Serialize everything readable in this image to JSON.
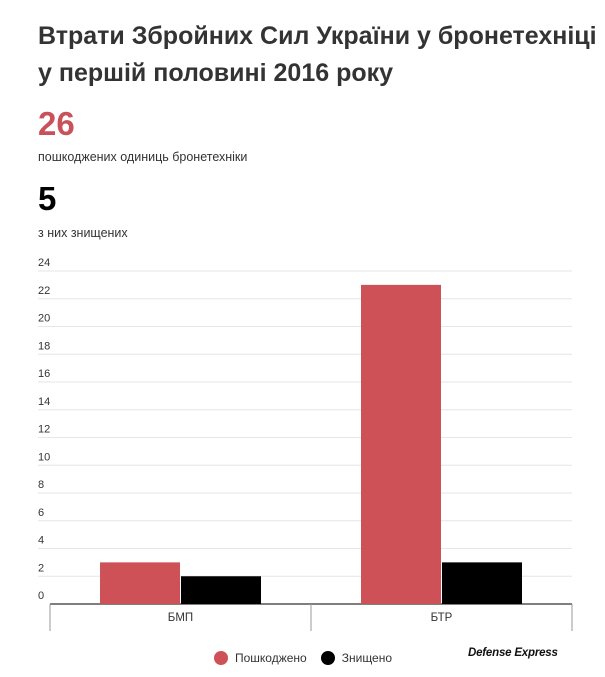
{
  "header": {
    "title": "Втрати Збройних Сил України у бронетехніці у першій половині  2016 року"
  },
  "stats": {
    "damaged_value": "26",
    "damaged_label": "пошкоджених одиниць бронетехніки",
    "destroyed_value": "5",
    "destroyed_label": "з них знищених"
  },
  "colors": {
    "damaged": "#cf5158",
    "destroyed": "#000000",
    "accent_text": "#c8515a"
  },
  "watermark": "Defense Express",
  "chart_data": {
    "type": "bar",
    "categories": [
      "БМП",
      "БТР"
    ],
    "series": [
      {
        "name": "Пошкоджено",
        "values": [
          3,
          23
        ]
      },
      {
        "name": "Знищено",
        "values": [
          2,
          3
        ]
      }
    ],
    "yticks": [
      0,
      2,
      4,
      6,
      8,
      10,
      12,
      14,
      16,
      18,
      20,
      22,
      24
    ],
    "ylim": [
      0,
      24
    ],
    "grid": true,
    "legend_position": "bottom"
  }
}
